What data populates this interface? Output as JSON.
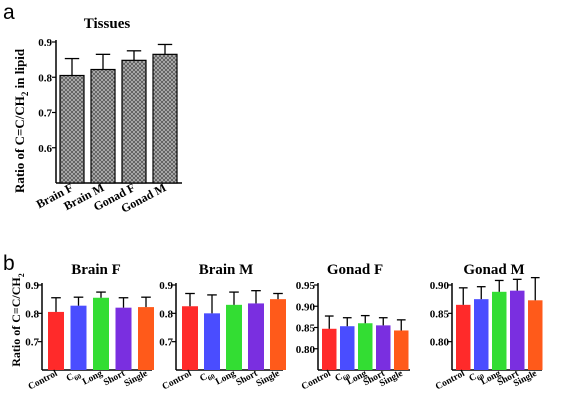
{
  "panel_letters": {
    "a": "a",
    "b": "b"
  },
  "y_axis_label": {
    "a": {
      "before": "Ratio of C=C/CH",
      "sub": "2",
      "after": " in lipid"
    },
    "b": {
      "before": "Ratio of C=C/CH",
      "sub": "2",
      "after": ""
    }
  },
  "colors": {
    "hatch_fill": "#9a9a9a",
    "Control": "#ff2a2a",
    "C60": "#4a4dff",
    "Long": "#33dd33",
    "Short": "#7a2fe0",
    "Single": "#ff5a1a"
  },
  "chart_data": [
    {
      "type": "bar",
      "panel": "a",
      "title": "Tissues",
      "categories": [
        "Brain F",
        "Brain M",
        "Gonad F",
        "Gonad M"
      ],
      "values": [
        0.805,
        0.822,
        0.848,
        0.865
      ],
      "errors": [
        0.048,
        0.043,
        0.027,
        0.028
      ],
      "ylim": [
        0.5,
        0.9
      ],
      "yticks": [
        "0.6",
        "0.7",
        "0.8",
        "0.9"
      ],
      "fill": "crosshatch"
    },
    {
      "type": "bar",
      "panel": "b",
      "title": "Brain F",
      "categories": [
        "Control",
        "C60",
        "Long",
        "Short",
        "Single"
      ],
      "values": [
        0.805,
        0.827,
        0.855,
        0.82,
        0.822
      ],
      "errors": [
        0.05,
        0.03,
        0.02,
        0.035,
        0.035
      ],
      "ylim": [
        0.6,
        0.9
      ],
      "yticks": [
        "0.7",
        "0.8",
        "0.9"
      ]
    },
    {
      "type": "bar",
      "panel": "b",
      "title": "Brain M",
      "categories": [
        "Control",
        "C60",
        "Long",
        "Short",
        "Single"
      ],
      "values": [
        0.825,
        0.8,
        0.83,
        0.835,
        0.85
      ],
      "errors": [
        0.045,
        0.065,
        0.045,
        0.045,
        0.02
      ],
      "ylim": [
        0.6,
        0.9
      ],
      "yticks": [
        "0.7",
        "0.8",
        "0.9"
      ]
    },
    {
      "type": "bar",
      "panel": "b",
      "title": "Gonad F",
      "categories": [
        "Control",
        "C60",
        "Long",
        "Short",
        "Single"
      ],
      "values": [
        0.847,
        0.853,
        0.86,
        0.855,
        0.843
      ],
      "errors": [
        0.03,
        0.02,
        0.018,
        0.018,
        0.025
      ],
      "ylim": [
        0.75,
        0.95
      ],
      "yticks": [
        "0.80",
        "0.85",
        "0.90",
        "0.95"
      ]
    },
    {
      "type": "bar",
      "panel": "b",
      "title": "Gonad M",
      "categories": [
        "Control",
        "C60",
        "Long",
        "Short",
        "Single"
      ],
      "values": [
        0.865,
        0.875,
        0.888,
        0.89,
        0.873
      ],
      "errors": [
        0.03,
        0.022,
        0.02,
        0.02,
        0.04
      ],
      "ylim": [
        0.75,
        0.9
      ],
      "yticks": [
        "0.80",
        "0.85",
        "0.90"
      ]
    }
  ]
}
